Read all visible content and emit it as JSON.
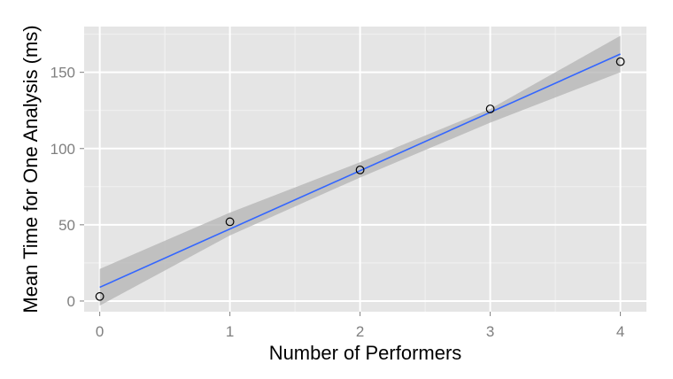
{
  "chart_data": {
    "type": "scatter",
    "title": "",
    "xlabel": "Number of Performers",
    "ylabel": "Mean Time for One Analysis (ms)",
    "xlim": [
      -0.12,
      4.2
    ],
    "ylim": [
      -7,
      180
    ],
    "x_ticks": [
      0,
      1,
      2,
      3,
      4
    ],
    "y_ticks": [
      0,
      50,
      100,
      150
    ],
    "grid": true,
    "legend": "none",
    "series": [
      {
        "x": [
          0,
          1,
          2,
          3,
          4
        ],
        "y": [
          3,
          52,
          86,
          126,
          157
        ]
      }
    ],
    "fit_line": {
      "x": [
        0,
        4
      ],
      "y": [
        9,
        162
      ]
    },
    "confidence_band": {
      "x": [
        0,
        1,
        2,
        3,
        4
      ],
      "lower": [
        -3,
        43,
        81,
        117,
        150
      ],
      "upper": [
        21,
        58,
        91,
        126,
        174
      ]
    },
    "colors": {
      "panel_background": "#e5e5e5",
      "grid_major": "#ffffff",
      "grid_minor": "#f2f2f2",
      "fit_line": "#3366ff",
      "band": "#b3b3b3",
      "points": "#000000",
      "tick_text": "#7f7f7f"
    }
  }
}
